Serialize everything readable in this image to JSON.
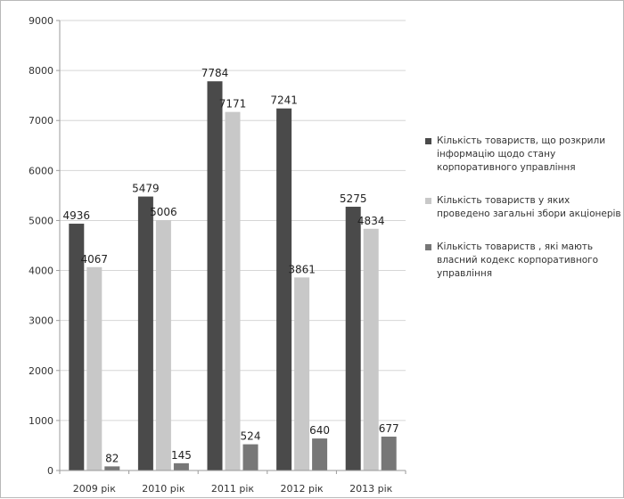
{
  "chart_data": {
    "type": "bar",
    "categories": [
      "2009 рік",
      "2010 рік",
      "2011 рік",
      "2012 рік",
      "2013 рік"
    ],
    "series": [
      {
        "name": "Кількість товариств, що розкрили інформацію щодо стану корпоративного управління",
        "values": [
          4936,
          5479,
          7784,
          7241,
          5275
        ],
        "color": "#4a4a4a"
      },
      {
        "name": "Кількість товариств у яких проведено загальні збори акціонерів",
        "values": [
          4067,
          5006,
          7171,
          3861,
          4834
        ],
        "color": "#c8c8c8"
      },
      {
        "name": "Кількість товариств , які мають власний кодекс корпоративного управління",
        "values": [
          82,
          145,
          524,
          640,
          677
        ],
        "color": "#777777"
      }
    ],
    "ylim": [
      0,
      9000
    ],
    "yticks": [
      0,
      1000,
      2000,
      3000,
      4000,
      5000,
      6000,
      7000,
      8000,
      9000
    ],
    "grid": true,
    "legend": "right",
    "data_labels": true
  }
}
